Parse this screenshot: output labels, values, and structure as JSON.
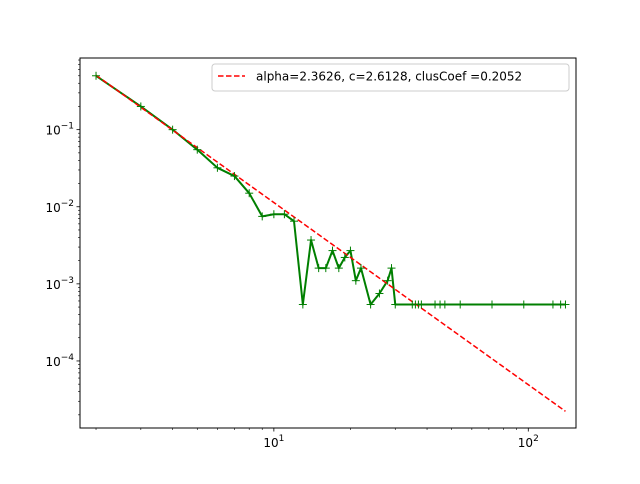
{
  "chart_data": {
    "type": "line",
    "title": "",
    "xlabel": "",
    "ylabel": "",
    "xscale": "log",
    "yscale": "log",
    "xlim": [
      1.73,
      154
    ],
    "ylim": [
      1.35e-05,
      0.85
    ],
    "grid": false,
    "legend_position": "upper right",
    "x_tick_labels": [
      {
        "value": 10,
        "mantissa": "10",
        "exponent": "1"
      },
      {
        "value": 100,
        "mantissa": "10",
        "exponent": "2"
      }
    ],
    "y_tick_labels": [
      {
        "value": 0.0001,
        "mantissa": "10",
        "exponent": "−4"
      },
      {
        "value": 0.001,
        "mantissa": "10",
        "exponent": "−3"
      },
      {
        "value": 0.01,
        "mantissa": "10",
        "exponent": "−2"
      },
      {
        "value": 0.1,
        "mantissa": "10",
        "exponent": "−1"
      }
    ],
    "series": [
      {
        "name": "",
        "style": "line-with-plus-markers",
        "color": "#007f00",
        "x": [
          2,
          3,
          4,
          5,
          6,
          7,
          8,
          9,
          10,
          11,
          12,
          13,
          14,
          15,
          16,
          17,
          18,
          19,
          20,
          21,
          22,
          24,
          26,
          28,
          29,
          30,
          35,
          36,
          37,
          38,
          43,
          45,
          47,
          54,
          72,
          96,
          125,
          134,
          140
        ],
        "y": [
          0.5,
          0.2,
          0.1,
          0.055,
          0.032,
          0.025,
          0.015,
          0.0075,
          0.008,
          0.008,
          0.0065,
          0.00054,
          0.0037,
          0.0016,
          0.0016,
          0.0027,
          0.0016,
          0.0022,
          0.0027,
          0.0011,
          0.0016,
          0.00054,
          0.00075,
          0.0011,
          0.0016,
          0.00054,
          0.00054,
          0.00054,
          0.00054,
          0.00054,
          0.00054,
          0.00054,
          0.00054,
          0.00054,
          0.00054,
          0.00054,
          0.00054,
          0.00054,
          0.00054
        ]
      },
      {
        "name": "alpha=2.3626, c=2.6128, clusCoef =0.2052",
        "style": "dashed",
        "color": "#ff0000",
        "model": {
          "form": "c * x^-alpha",
          "alpha": 2.3626,
          "c": 2.6128
        },
        "x": [
          2,
          140
        ]
      }
    ]
  }
}
